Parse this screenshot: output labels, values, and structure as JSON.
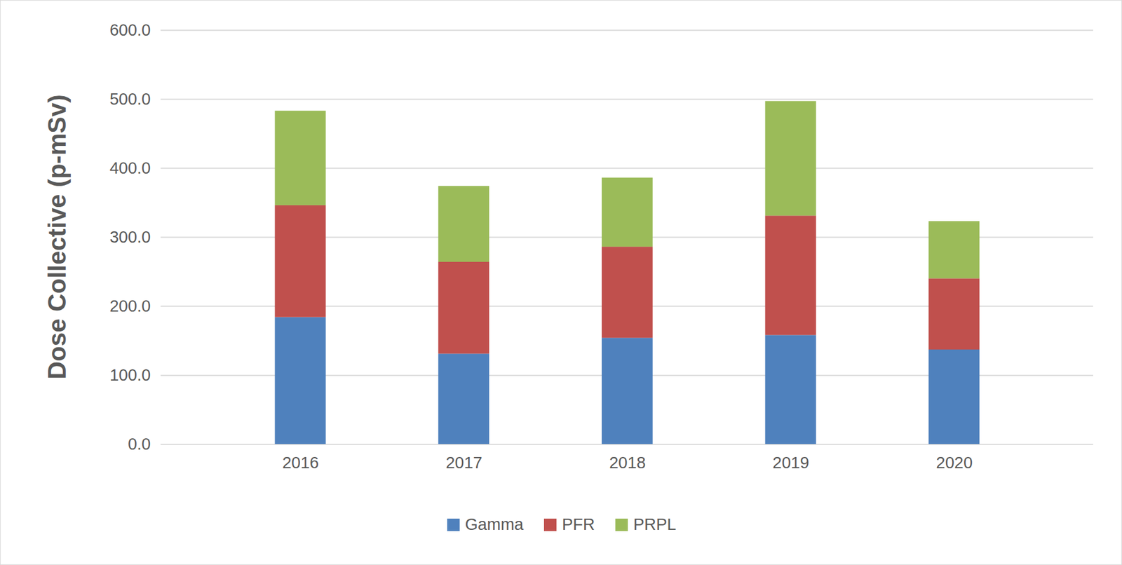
{
  "chart_data": {
    "type": "bar",
    "stacked": true,
    "grid": true,
    "legend": "bottom",
    "y_label": "Dose Collective (p-mSv)",
    "categories": [
      "2016",
      "2017",
      "2018",
      "2019",
      "2020"
    ],
    "series": [
      {
        "name": "Gamma",
        "color": "#4f81bd",
        "values": [
          184,
          131,
          154,
          158,
          137
        ]
      },
      {
        "name": "PFR",
        "color": "#c0504d",
        "values": [
          162,
          133,
          132,
          173,
          103
        ]
      },
      {
        "name": "PRPL",
        "color": "#9bbb59",
        "values": [
          137,
          110,
          100,
          166,
          83
        ]
      }
    ],
    "ylim": [
      0,
      600
    ],
    "yticks": [
      {
        "value": 0,
        "label": "0.0"
      },
      {
        "value": 100,
        "label": "100.0"
      },
      {
        "value": 200,
        "label": "200.0"
      },
      {
        "value": 300,
        "label": "300.0"
      },
      {
        "value": 400,
        "label": "400.0"
      },
      {
        "value": 500,
        "label": "500.0"
      },
      {
        "value": 600,
        "label": "600.0"
      }
    ]
  }
}
